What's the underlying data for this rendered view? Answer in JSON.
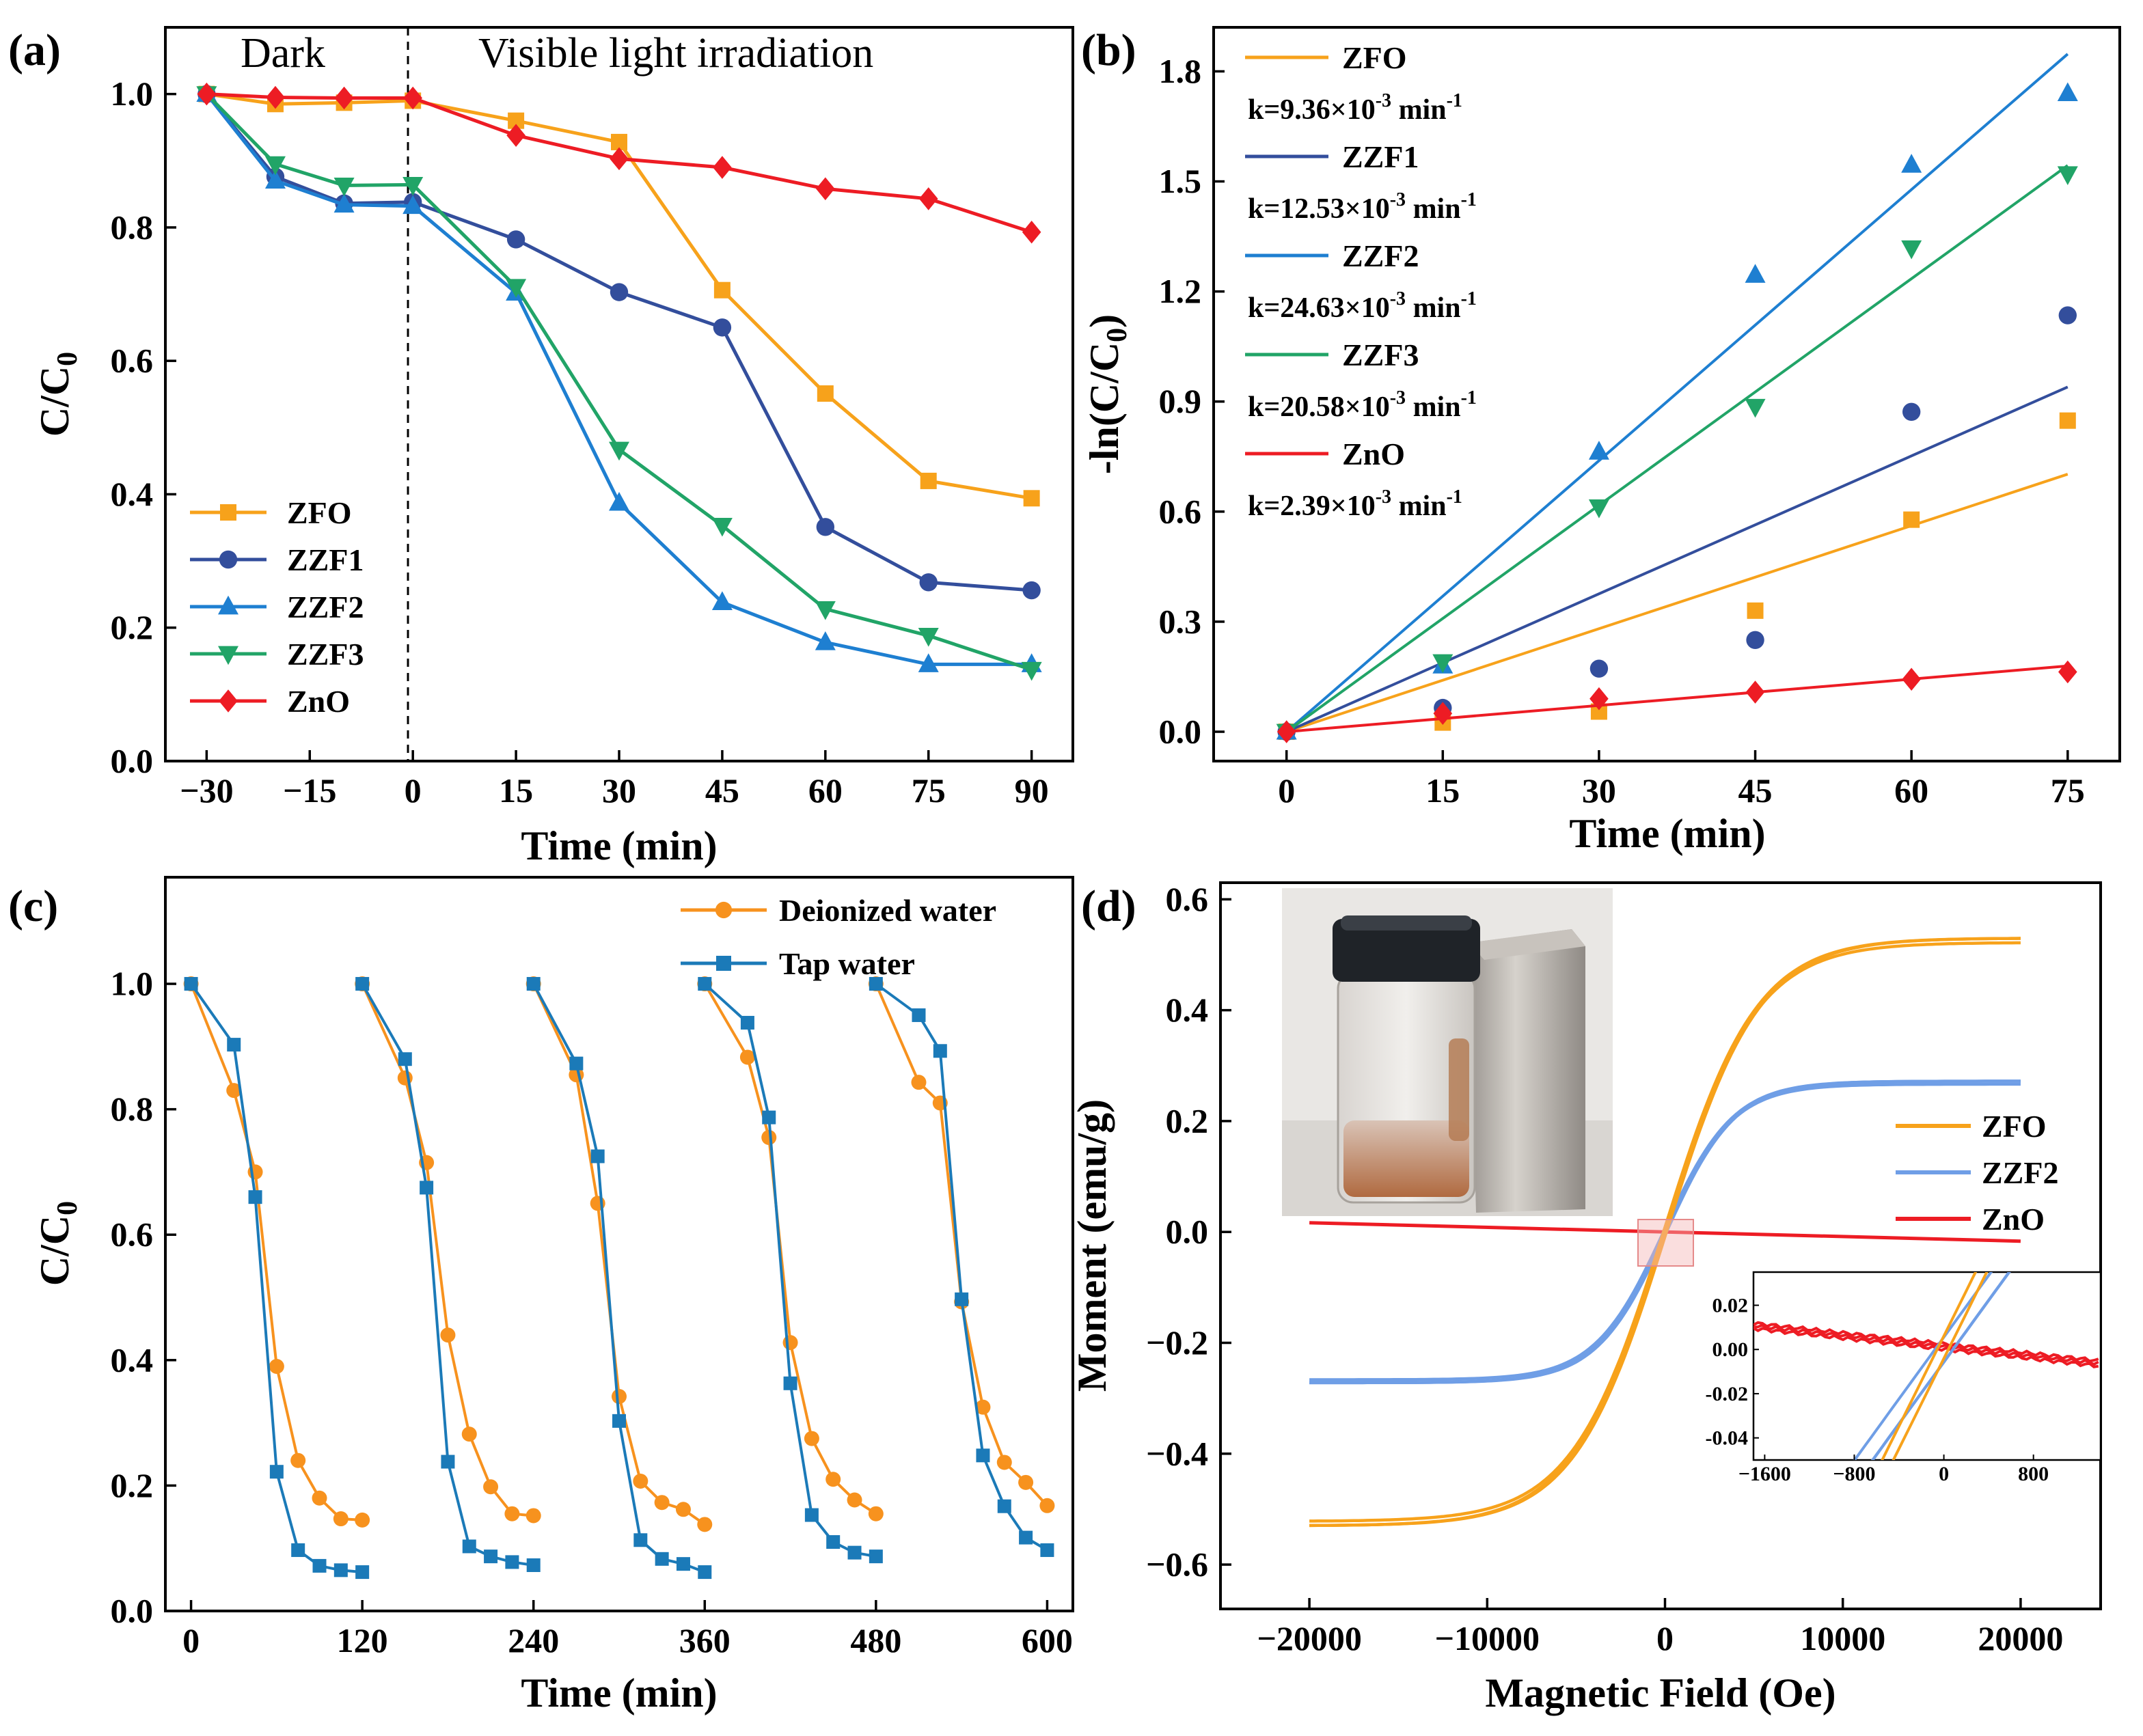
{
  "chart_data": [
    {
      "id": "a",
      "panel_label": "(a)",
      "type": "line",
      "xlabel": "Time (min)",
      "ylabel_main": "C/C",
      "ylabel_sub": "0",
      "xlim": [
        -36,
        96
      ],
      "ylim": [
        0,
        1.1
      ],
      "xticks": [
        -30,
        -15,
        0,
        15,
        30,
        45,
        60,
        75,
        90
      ],
      "yticks": [
        0.0,
        0.2,
        0.4,
        0.6,
        0.8,
        1.0
      ],
      "xtick_labels": [
        "−30",
        "−15",
        "0",
        "15",
        "30",
        "45",
        "60",
        "75",
        "90"
      ],
      "ytick_labels": [
        "0.0",
        "0.2",
        "0.4",
        "0.6",
        "0.8",
        "1.0"
      ],
      "annotations": [
        {
          "text": "Dark"
        },
        {
          "text": "Visible light irradiation"
        }
      ],
      "divider_x": 0,
      "legend_position": "lower-left",
      "series": [
        {
          "name": "ZFO",
          "color": "#f7a21b",
          "marker": "square",
          "x": [
            -30,
            -20,
            -10,
            0,
            15,
            30,
            45,
            60,
            75,
            90
          ],
          "y": [
            1.0,
            0.985,
            0.987,
            0.99,
            0.96,
            0.928,
            0.706,
            0.551,
            0.42,
            0.394
          ]
        },
        {
          "name": "ZZF1",
          "color": "#334e9c",
          "marker": "circle",
          "x": [
            -30,
            -20,
            -10,
            0,
            15,
            30,
            45,
            60,
            75,
            90
          ],
          "y": [
            1.0,
            0.876,
            0.836,
            0.838,
            0.782,
            0.703,
            0.65,
            0.351,
            0.268,
            0.256
          ]
        },
        {
          "name": "ZZF2",
          "color": "#1e7fd1",
          "marker": "triangle-up",
          "x": [
            -30,
            -20,
            -10,
            0,
            15,
            30,
            45,
            60,
            75,
            90
          ],
          "y": [
            1.0,
            0.87,
            0.834,
            0.832,
            0.702,
            0.387,
            0.238,
            0.178,
            0.145,
            0.145
          ]
        },
        {
          "name": "ZZF3",
          "color": "#21a467",
          "marker": "triangle-down",
          "x": [
            -30,
            -20,
            -10,
            0,
            15,
            30,
            45,
            60,
            75,
            90
          ],
          "y": [
            1.0,
            0.895,
            0.863,
            0.864,
            0.711,
            0.467,
            0.353,
            0.228,
            0.188,
            0.137
          ]
        },
        {
          "name": "ZnO",
          "color": "#ed1c24",
          "marker": "diamond",
          "x": [
            -30,
            -20,
            -10,
            0,
            15,
            30,
            45,
            60,
            75,
            90
          ],
          "y": [
            1.0,
            0.995,
            0.994,
            0.994,
            0.938,
            0.903,
            0.89,
            0.858,
            0.843,
            0.793
          ]
        }
      ]
    },
    {
      "id": "b",
      "panel_label": "(b)",
      "type": "scatter",
      "xlabel": "Time (min)",
      "ylabel": "-ln(C/C",
      "ylabel_sub": "0",
      "ylabel_end": ")",
      "xlim": [
        -7,
        80
      ],
      "ylim": [
        -0.08,
        1.92
      ],
      "xticks": [
        0,
        15,
        30,
        45,
        60,
        75
      ],
      "yticks": [
        0.0,
        0.3,
        0.6,
        0.9,
        1.2,
        1.5,
        1.8
      ],
      "xtick_labels": [
        "0",
        "15",
        "30",
        "45",
        "60",
        "75"
      ],
      "ytick_labels": [
        "0.0",
        "0.3",
        "0.6",
        "0.9",
        "1.2",
        "1.5",
        "1.8"
      ],
      "legend_position": "top-left",
      "series": [
        {
          "name": "ZFO",
          "color": "#f7a21b",
          "marker": "square",
          "k_label": "k=9.36×10",
          "k_exp": "-3",
          "k_unit": " min",
          "k_unit_exp": "-1",
          "x": [
            0,
            15,
            30,
            45,
            60,
            75
          ],
          "y": [
            0.0,
            0.025,
            0.055,
            0.33,
            0.578,
            0.848
          ],
          "slope": 0.00936
        },
        {
          "name": "ZZF1",
          "color": "#334e9c",
          "marker": "circle",
          "k_label": "k=12.53×10",
          "k_exp": "-3",
          "k_unit": " min",
          "k_unit_exp": "-1",
          "x": [
            0,
            15,
            30,
            45,
            60,
            75
          ],
          "y": [
            0.0,
            0.065,
            0.172,
            0.25,
            0.872,
            1.135
          ],
          "slope": 0.01253
        },
        {
          "name": "ZZF2",
          "color": "#1e7fd1",
          "marker": "triangle-up",
          "k_label": "k=24.63×10",
          "k_exp": "-3",
          "k_unit": " min",
          "k_unit_exp": "-1",
          "x": [
            0,
            15,
            30,
            45,
            60,
            75
          ],
          "y": [
            0.0,
            0.18,
            0.763,
            1.245,
            1.545,
            1.74
          ],
          "slope": 0.02463
        },
        {
          "name": "ZZF3",
          "color": "#21a467",
          "marker": "triangle-down",
          "k_label": "k=20.58×10",
          "k_exp": "-3",
          "k_unit": " min",
          "k_unit_exp": "-1",
          "x": [
            0,
            15,
            30,
            45,
            60,
            75
          ],
          "y": [
            0.0,
            0.19,
            0.612,
            0.886,
            1.318,
            1.52
          ],
          "slope": 0.02058
        },
        {
          "name": "ZnO",
          "color": "#ed1c24",
          "marker": "diamond",
          "k_label": "k=2.39×10",
          "k_exp": "-3",
          "k_unit": " min",
          "k_unit_exp": "-1",
          "x": [
            0,
            15,
            30,
            45,
            60,
            75
          ],
          "y": [
            0.0,
            0.05,
            0.09,
            0.108,
            0.143,
            0.163
          ],
          "slope": 0.00239
        }
      ]
    },
    {
      "id": "c",
      "panel_label": "(c)",
      "type": "line",
      "xlabel": "Time (min)",
      "ylabel_main": "C/C",
      "ylabel_sub": "0",
      "xlim": [
        -18,
        618
      ],
      "ylim": [
        0,
        1.17
      ],
      "xticks": [
        0,
        120,
        240,
        360,
        480,
        600
      ],
      "yticks": [
        0.0,
        0.2,
        0.4,
        0.6,
        0.8,
        1.0
      ],
      "xtick_labels": [
        "0",
        "120",
        "240",
        "360",
        "480",
        "600"
      ],
      "ytick_labels": [
        "0.0",
        "0.2",
        "0.4",
        "0.6",
        "0.8",
        "1.0"
      ],
      "legend_position": "top-right",
      "series": [
        {
          "name": "Deionized water",
          "color": "#f7921e",
          "marker": "circle",
          "cycles": [
            {
              "x": [
                0,
                30,
                45,
                60,
                75,
                90,
                105,
                120
              ],
              "y": [
                1.0,
                0.83,
                0.7,
                0.39,
                0.24,
                0.18,
                0.147,
                0.145
              ]
            },
            {
              "x": [
                120,
                150,
                165,
                180,
                195,
                210,
                225,
                240
              ],
              "y": [
                1.0,
                0.85,
                0.715,
                0.44,
                0.282,
                0.198,
                0.155,
                0.152
              ]
            },
            {
              "x": [
                240,
                270,
                285,
                300,
                315,
                330,
                345,
                360
              ],
              "y": [
                1.0,
                0.855,
                0.65,
                0.342,
                0.207,
                0.173,
                0.162,
                0.138
              ]
            },
            {
              "x": [
                360,
                390,
                405,
                420,
                435,
                450,
                465,
                480
              ],
              "y": [
                1.0,
                0.883,
                0.755,
                0.428,
                0.275,
                0.21,
                0.177,
                0.155
              ]
            },
            {
              "x": [
                480,
                510,
                525,
                540,
                555,
                570,
                585,
                600
              ],
              "y": [
                1.0,
                0.843,
                0.81,
                0.493,
                0.325,
                0.237,
                0.205,
                0.168
              ]
            }
          ]
        },
        {
          "name": "Tap water",
          "color": "#1b7ab8",
          "marker": "square",
          "cycles": [
            {
              "x": [
                0,
                30,
                45,
                60,
                75,
                90,
                105,
                120
              ],
              "y": [
                1.0,
                0.903,
                0.66,
                0.222,
                0.097,
                0.072,
                0.065,
                0.062
              ]
            },
            {
              "x": [
                120,
                150,
                165,
                180,
                195,
                210,
                225,
                240
              ],
              "y": [
                1.0,
                0.88,
                0.675,
                0.238,
                0.103,
                0.087,
                0.078,
                0.073
              ]
            },
            {
              "x": [
                240,
                270,
                285,
                300,
                315,
                330,
                345,
                360
              ],
              "y": [
                1.0,
                0.873,
                0.725,
                0.303,
                0.113,
                0.083,
                0.075,
                0.062
              ]
            },
            {
              "x": [
                360,
                390,
                405,
                420,
                435,
                450,
                465,
                480
              ],
              "y": [
                1.0,
                0.938,
                0.787,
                0.363,
                0.153,
                0.11,
                0.093,
                0.087
              ]
            },
            {
              "x": [
                480,
                510,
                525,
                540,
                555,
                570,
                585,
                600
              ],
              "y": [
                1.0,
                0.95,
                0.893,
                0.497,
                0.248,
                0.167,
                0.117,
                0.097
              ]
            }
          ]
        }
      ]
    },
    {
      "id": "d",
      "panel_label": "(d)",
      "type": "line",
      "xlabel": "Magnetic Field (Oe)",
      "ylabel": "Moment (emu/g)",
      "xlim": [
        -25000,
        24500
      ],
      "ylim": [
        -0.68,
        0.63
      ],
      "xticks": [
        -20000,
        -10000,
        0,
        10000,
        20000
      ],
      "yticks": [
        -0.6,
        -0.4,
        -0.2,
        0.0,
        0.2,
        0.4,
        0.6
      ],
      "xtick_labels": [
        "−20000",
        "−10000",
        "0",
        "10000",
        "20000"
      ],
      "ytick_labels": [
        "−0.6",
        "−0.4",
        "−0.2",
        "0.0",
        "0.2",
        "0.4",
        "0.6"
      ],
      "legend_position": "right",
      "series": [
        {
          "name": "ZFO",
          "color": "#f7a21b",
          "Ms": 0.53,
          "H0": 5200,
          "Hc": 80
        },
        {
          "name": "ZZF2",
          "color": "#6f9ee6",
          "Ms": 0.272,
          "H0": 3900,
          "Hc": 80
        },
        {
          "name": "ZnO",
          "color": "#ed1c24",
          "slope": -8.3e-07
        }
      ],
      "inset": {
        "xlim": [
          -1700,
          1400
        ],
        "ylim": [
          -0.05,
          0.035
        ],
        "xticks": [
          -1600,
          -800,
          0,
          800
        ],
        "yticks": [
          -0.04,
          -0.02,
          0.0,
          0.02
        ],
        "xtick_labels": [
          "−1600",
          "−800",
          "0",
          "800"
        ],
        "ytick_labels": [
          "-0.04",
          "-0.02",
          "0.00",
          "0.02"
        ]
      },
      "photo_inset": "photo of sample vial next to magnet"
    }
  ]
}
